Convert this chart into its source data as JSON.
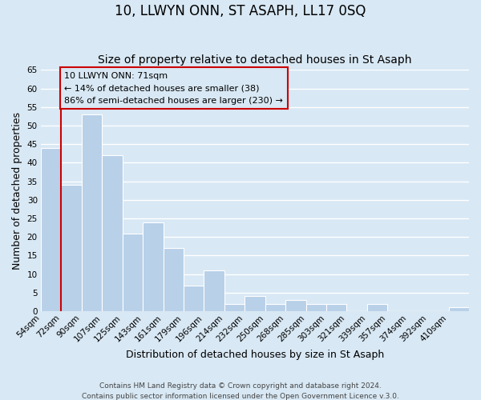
{
  "title": "10, LLWYN ONN, ST ASAPH, LL17 0SQ",
  "subtitle": "Size of property relative to detached houses in St Asaph",
  "xlabel": "Distribution of detached houses by size in St Asaph",
  "ylabel": "Number of detached properties",
  "bar_color": "#b8d0e8",
  "grid_color": "#ffffff",
  "bg_color": "#d8e8f4",
  "bins": [
    "54sqm",
    "72sqm",
    "90sqm",
    "107sqm",
    "125sqm",
    "143sqm",
    "161sqm",
    "179sqm",
    "196sqm",
    "214sqm",
    "232sqm",
    "250sqm",
    "268sqm",
    "285sqm",
    "303sqm",
    "321sqm",
    "339sqm",
    "357sqm",
    "374sqm",
    "392sqm",
    "410sqm"
  ],
  "values": [
    44,
    34,
    53,
    42,
    21,
    24,
    17,
    7,
    11,
    2,
    4,
    2,
    3,
    2,
    2,
    0,
    2,
    0,
    0,
    0,
    1
  ],
  "ylim": [
    0,
    65
  ],
  "yticks": [
    0,
    5,
    10,
    15,
    20,
    25,
    30,
    35,
    40,
    45,
    50,
    55,
    60,
    65
  ],
  "property_label": "10 LLWYN ONN: 71sqm",
  "annotation_line1": "← 14% of detached houses are smaller (38)",
  "annotation_line2": "86% of semi-detached houses are larger (230) →",
  "footer1": "Contains HM Land Registry data © Crown copyright and database right 2024.",
  "footer2": "Contains public sector information licensed under the Open Government Licence v.3.0.",
  "property_line_color": "#cc0000",
  "annotation_box_edge_color": "#cc0000",
  "title_fontsize": 12,
  "subtitle_fontsize": 10,
  "tick_fontsize": 7.5,
  "ylabel_fontsize": 9,
  "xlabel_fontsize": 9,
  "footer_fontsize": 6.5
}
